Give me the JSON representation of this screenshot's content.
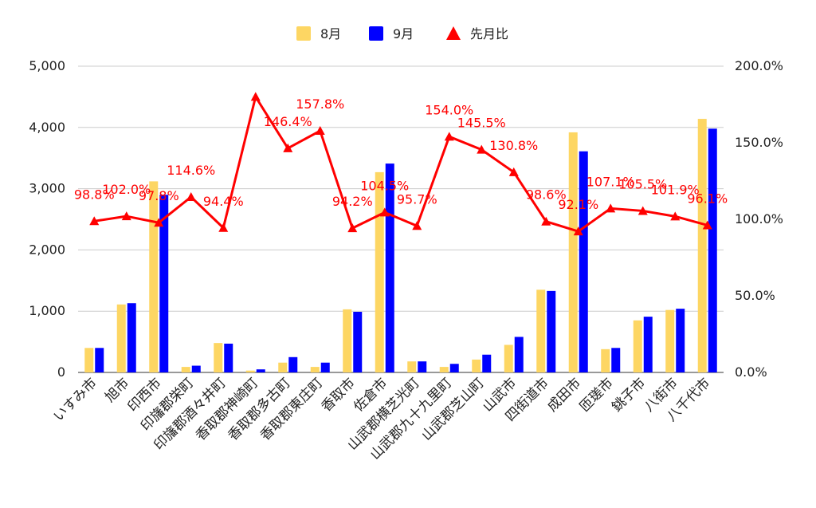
{
  "chart_data": {
    "type": "bar",
    "categories": [
      "いすみ市",
      "旭市",
      "印西市",
      "印旛郡栄町",
      "印旛郡酒々井町",
      "香取郡神崎町",
      "香取郡多古町",
      "香取郡東庄町",
      "香取市",
      "佐倉市",
      "山武郡横芝光町",
      "山武郡九十九里町",
      "山武郡芝山町",
      "山武市",
      "四街道市",
      "成田市",
      "匝瑳市",
      "銚子市",
      "八街市",
      "八千代市"
    ],
    "series": [
      {
        "name": "8月",
        "type": "bar",
        "axis": "left",
        "color": "#fdd663",
        "values": [
          400,
          1110,
          3120,
          90,
          480,
          30,
          160,
          90,
          1030,
          3270,
          180,
          90,
          210,
          450,
          1350,
          3920,
          380,
          850,
          1020,
          4140
        ]
      },
      {
        "name": "9月",
        "type": "bar",
        "axis": "left",
        "color": "#0000ff",
        "values": [
          400,
          1130,
          2900,
          110,
          470,
          50,
          250,
          160,
          990,
          3410,
          180,
          140,
          290,
          580,
          1330,
          3610,
          400,
          910,
          1040,
          3980
        ]
      },
      {
        "name": "先月比",
        "type": "line",
        "axis": "right",
        "color": "#ff0000",
        "marker": "triangle",
        "values": [
          98.8,
          102.0,
          97.8,
          114.6,
          94.4,
          180.0,
          146.4,
          157.8,
          94.2,
          104.5,
          95.7,
          154.0,
          145.5,
          130.8,
          98.6,
          92.1,
          107.1,
          105.5,
          101.9,
          96.1
        ]
      }
    ],
    "data_labels": [
      "98.8%",
      "102.0%",
      "97.8%",
      "114.6%",
      "94.4%",
      "",
      "146.4%",
      "157.8%",
      "94.2%",
      "104.5%",
      "95.7%",
      "154.0%",
      "145.5%",
      "130.8%",
      "98.6%",
      "92.1%",
      "107.1%",
      "105.5%",
      "101.9%",
      "96.1%"
    ],
    "y_left": {
      "min": 0,
      "max": 5000,
      "ticks": [
        "0",
        "1,000",
        "2,000",
        "3,000",
        "4,000",
        "5,000"
      ]
    },
    "y_right": {
      "min": 0,
      "max": 200,
      "ticks": [
        "0.0%",
        "50.0%",
        "100.0%",
        "150.0%",
        "200.0%"
      ]
    },
    "legend_position": "top-center",
    "grid": true
  }
}
